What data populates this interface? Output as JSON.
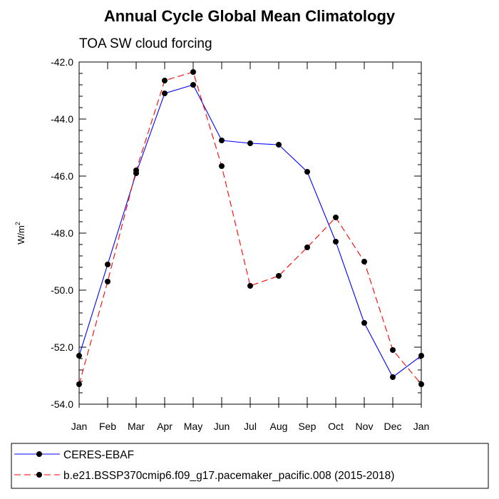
{
  "chart_data": {
    "type": "line",
    "title": "Annual Cycle Global Mean Climatology",
    "subtitle": "TOA SW cloud forcing",
    "ylabel_base": "W/m",
    "ylabel_sup": "2",
    "xlabel": "",
    "categories": [
      "Jan",
      "Feb",
      "Mar",
      "Apr",
      "May",
      "Jun",
      "Jul",
      "Aug",
      "Sep",
      "Oct",
      "Nov",
      "Dec",
      "Jan"
    ],
    "ylim": [
      -54.0,
      -42.0
    ],
    "yticks": [
      "-42.0",
      "-44.0",
      "-46.0",
      "-48.0",
      "-50.0",
      "-52.0",
      "-54.0"
    ],
    "ytick_values": [
      -42,
      -44,
      -46,
      -48,
      -50,
      -52,
      -54
    ],
    "grid": false,
    "legend_position": "bottom",
    "series": [
      {
        "name": "CERES-EBAF",
        "color": "#0000ff",
        "dash": "solid",
        "values": [
          -52.3,
          -49.1,
          -45.9,
          -43.1,
          -42.8,
          -44.75,
          -44.85,
          -44.9,
          -45.85,
          -48.3,
          -51.15,
          -53.05,
          -52.3
        ]
      },
      {
        "name": "b.e21.BSSP370cmip6.f09_g17.pacemaker_pacific.008 (2015-2018)",
        "color": "#ff0000",
        "dash": "dashed",
        "values": [
          -53.3,
          -49.7,
          -45.8,
          -42.65,
          -42.35,
          -45.65,
          -49.85,
          -49.5,
          -48.5,
          -47.45,
          -49.0,
          -52.1,
          -53.3
        ]
      }
    ]
  }
}
